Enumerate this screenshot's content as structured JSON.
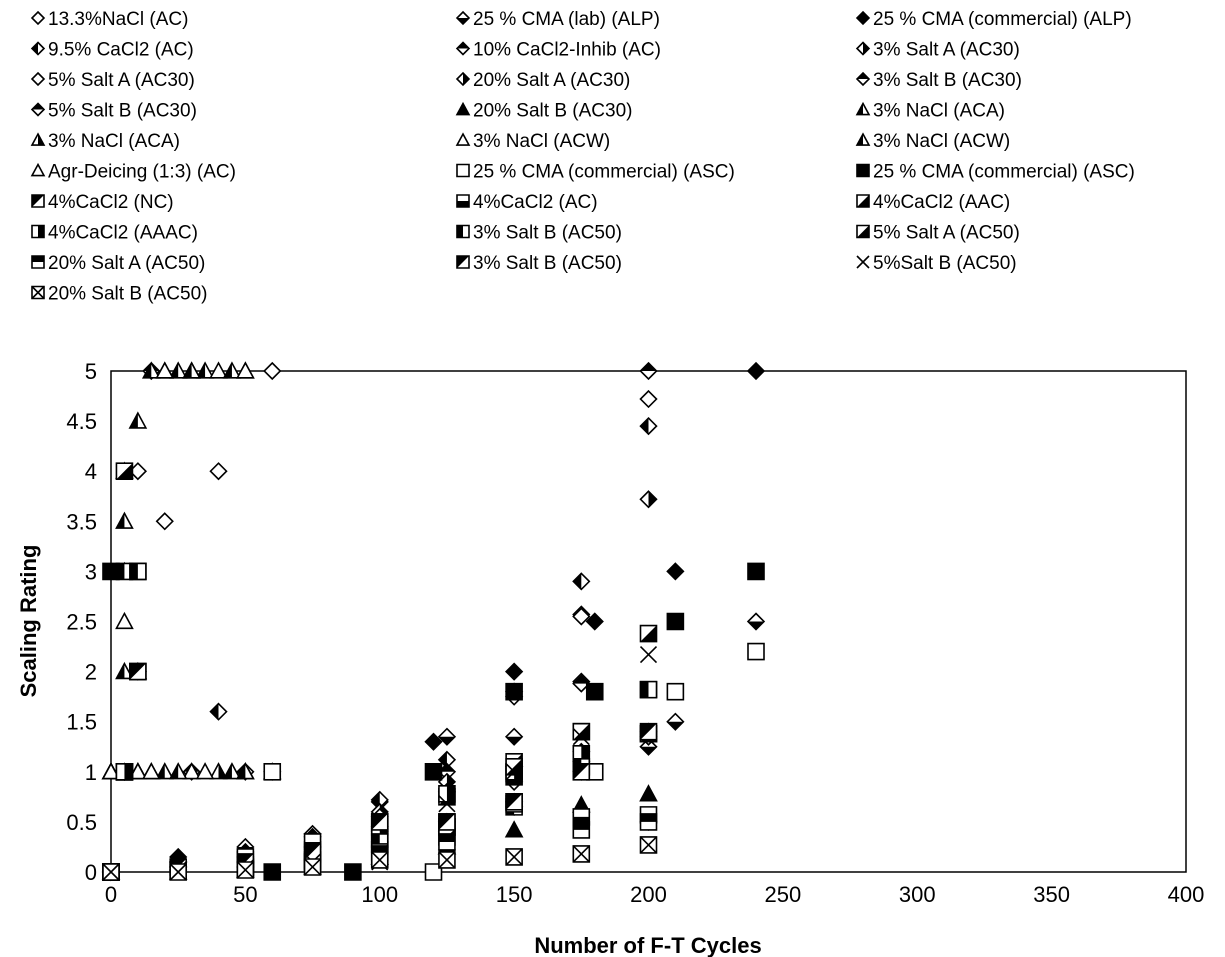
{
  "chart_data": {
    "type": "scatter",
    "xlabel": "Number of F-T Cycles",
    "ylabel": "Scaling Rating",
    "xlim": [
      0,
      400
    ],
    "ylim": [
      0,
      5
    ],
    "x_ticks": [
      "0",
      "50",
      "100",
      "150",
      "200",
      "250",
      "300",
      "350",
      "400"
    ],
    "y_ticks": [
      "0",
      "0.5",
      "1",
      "1.5",
      "2",
      "2.5",
      "3",
      "3.5",
      "4",
      "4.5",
      "5"
    ],
    "grid": false,
    "legend_position": "top",
    "series": [
      {
        "name": "13.3%NaCl (AC)",
        "marker": "diamond-open",
        "points": [
          [
            0,
            0
          ],
          [
            5,
            1
          ],
          [
            10,
            4
          ],
          [
            20,
            3.5
          ],
          [
            40,
            4
          ],
          [
            60,
            5
          ]
        ]
      },
      {
        "name": "25 % CMA (lab) (ALP)",
        "marker": "diamond-half-bottom",
        "points": [
          [
            0,
            0
          ],
          [
            25,
            0.1
          ],
          [
            50,
            0.25
          ],
          [
            75,
            0.38
          ],
          [
            100,
            0.7
          ],
          [
            125,
            1.35
          ],
          [
            150,
            1.35
          ],
          [
            175,
            1.9
          ],
          [
            200,
            1.25
          ],
          [
            210,
            1.5
          ],
          [
            240,
            2.5
          ]
        ]
      },
      {
        "name": "25 % CMA (commercial) (ALP)",
        "marker": "diamond-filled",
        "points": [
          [
            0,
            0
          ],
          [
            25,
            0.15
          ],
          [
            50,
            0.2
          ],
          [
            75,
            0.35
          ],
          [
            100,
            0.4
          ],
          [
            120,
            1.3
          ],
          [
            150,
            2
          ],
          [
            180,
            2.5
          ],
          [
            210,
            3
          ],
          [
            240,
            5
          ]
        ]
      },
      {
        "name": "9.5% CaCl2 (AC)",
        "marker": "diamond-half-left",
        "points": [
          [
            0,
            0
          ],
          [
            5,
            1
          ],
          [
            10,
            2
          ],
          [
            40,
            1.6
          ],
          [
            50,
            1
          ],
          [
            100,
            0.72
          ],
          [
            125,
            1.12
          ],
          [
            150,
            1.05
          ],
          [
            175,
            2.9
          ],
          [
            200,
            4.45
          ]
        ]
      },
      {
        "name": "10% CaCl2-Inhib (AC)",
        "marker": "diamond-half-top",
        "points": [
          [
            0,
            0
          ],
          [
            5,
            1
          ],
          [
            15,
            5
          ],
          [
            30,
            1
          ],
          [
            60,
            1
          ],
          [
            100,
            0.3
          ],
          [
            125,
            1
          ],
          [
            150,
            0.7
          ],
          [
            175,
            1.1
          ],
          [
            200,
            5
          ]
        ]
      },
      {
        "name": "3% Salt A (AC30)",
        "marker": "diamond-half-right",
        "points": [
          [
            0,
            0
          ],
          [
            25,
            0.05
          ],
          [
            50,
            0.1
          ],
          [
            75,
            0.2
          ],
          [
            100,
            0.6
          ],
          [
            125,
            0.9
          ],
          [
            150,
            1.8
          ],
          [
            175,
            2.57
          ],
          [
            200,
            3.72
          ]
        ]
      },
      {
        "name": "5% Salt A (AC30)",
        "marker": "diamond-open",
        "points": [
          [
            0,
            0
          ],
          [
            25,
            0.1
          ],
          [
            50,
            0.15
          ],
          [
            75,
            0.3
          ],
          [
            100,
            0.55
          ],
          [
            125,
            0.8
          ],
          [
            150,
            1.75
          ],
          [
            175,
            2.55
          ],
          [
            200,
            4.72
          ]
        ]
      },
      {
        "name": "20% Salt A (AC30)",
        "marker": "diamond-half-right",
        "points": [
          [
            0,
            0
          ],
          [
            25,
            0.02
          ],
          [
            50,
            0.05
          ],
          [
            75,
            0.1
          ],
          [
            100,
            0.2
          ],
          [
            125,
            0.4
          ],
          [
            150,
            0.65
          ],
          [
            175,
            1.2
          ],
          [
            200,
            1.4
          ]
        ]
      },
      {
        "name": "3% Salt B (AC30)",
        "marker": "diamond-half-top",
        "points": [
          [
            0,
            0
          ],
          [
            25,
            0.05
          ],
          [
            50,
            0.05
          ],
          [
            75,
            0.12
          ],
          [
            100,
            0.25
          ],
          [
            125,
            0.5
          ],
          [
            150,
            0.9
          ],
          [
            175,
            1
          ],
          [
            200,
            0.5
          ]
        ]
      },
      {
        "name": "5% Salt B (AC30)",
        "marker": "diamond-half-top",
        "points": [
          [
            0,
            0
          ],
          [
            25,
            0.1
          ],
          [
            50,
            0.1
          ],
          [
            75,
            0.25
          ],
          [
            100,
            0.45
          ],
          [
            125,
            0.22
          ],
          [
            150,
            1.05
          ],
          [
            175,
            1.88
          ],
          [
            200,
            1.35
          ]
        ]
      },
      {
        "name": "20% Salt B (AC30)",
        "marker": "triangle-filled",
        "points": [
          [
            0,
            0
          ],
          [
            25,
            0
          ],
          [
            50,
            0.02
          ],
          [
            75,
            0.05
          ],
          [
            100,
            0.15
          ],
          [
            125,
            0.25
          ],
          [
            150,
            0.42
          ],
          [
            175,
            0.67
          ],
          [
            200,
            0.78
          ]
        ]
      },
      {
        "name": "3% NaCl (ACA)",
        "marker": "triangle-half-left",
        "points": [
          [
            0,
            1
          ],
          [
            5,
            3.5
          ],
          [
            10,
            4.5
          ],
          [
            15,
            5
          ],
          [
            20,
            1
          ],
          [
            25,
            5
          ],
          [
            35,
            5
          ],
          [
            45,
            1
          ]
        ]
      },
      {
        "name": "3% NaCl (ACA)",
        "marker": "triangle-half-right",
        "points": [
          [
            0,
            1
          ],
          [
            5,
            3
          ],
          [
            10,
            2
          ],
          [
            20,
            5
          ],
          [
            30,
            5
          ],
          [
            40,
            1
          ],
          [
            50,
            5
          ]
        ]
      },
      {
        "name": "3% NaCl (ACW)",
        "marker": "triangle-open",
        "points": [
          [
            0,
            1
          ],
          [
            5,
            2.5
          ],
          [
            10,
            1
          ],
          [
            15,
            1
          ],
          [
            20,
            5
          ],
          [
            30,
            1
          ],
          [
            40,
            5
          ],
          [
            50,
            1
          ]
        ]
      },
      {
        "name": "3% NaCl (ACW)",
        "marker": "triangle-half-left",
        "points": [
          [
            0,
            1
          ],
          [
            5,
            2
          ],
          [
            10,
            1
          ],
          [
            25,
            1
          ],
          [
            30,
            5
          ],
          [
            45,
            5
          ],
          [
            50,
            1
          ]
        ]
      },
      {
        "name": "Agr-Deicing (1:3) (AC)",
        "marker": "triangle-open",
        "points": [
          [
            0,
            1
          ],
          [
            5,
            4
          ],
          [
            10,
            1
          ],
          [
            15,
            1
          ],
          [
            35,
            1
          ],
          [
            50,
            5
          ],
          [
            60,
            1
          ]
        ]
      },
      {
        "name": "25 % CMA (commercial) (ASC)",
        "marker": "square-open",
        "points": [
          [
            0,
            0
          ],
          [
            5,
            1
          ],
          [
            10,
            2
          ],
          [
            60,
            1
          ],
          [
            120,
            0
          ],
          [
            150,
            1
          ],
          [
            180,
            1
          ],
          [
            210,
            1.8
          ],
          [
            240,
            2.2
          ]
        ]
      },
      {
        "name": "25 % CMA (commercial) (ASC)",
        "marker": "square-filled",
        "points": [
          [
            0,
            3
          ],
          [
            60,
            0
          ],
          [
            90,
            0
          ],
          [
            120,
            1
          ],
          [
            150,
            1.8
          ],
          [
            180,
            1.8
          ],
          [
            210,
            2.5
          ],
          [
            240,
            3
          ]
        ]
      },
      {
        "name": "4%CaCl2 (NC)",
        "marker": "square-half-upper-left",
        "points": [
          [
            0,
            0
          ],
          [
            5,
            1
          ],
          [
            10,
            2
          ],
          [
            100,
            0.3
          ],
          [
            125,
            0.45
          ],
          [
            150,
            0.7
          ],
          [
            200,
            1.38
          ]
        ]
      },
      {
        "name": "4%CaCl2 (AC)",
        "marker": "square-half-bottom",
        "points": [
          [
            0,
            0
          ],
          [
            5,
            1
          ],
          [
            50,
            0.15
          ],
          [
            75,
            0.3
          ],
          [
            100,
            0.35
          ],
          [
            125,
            0.45
          ],
          [
            150,
            0.95
          ],
          [
            175,
            0.55
          ],
          [
            200,
            0.57
          ]
        ]
      },
      {
        "name": "4%CaCl2 (AAC)",
        "marker": "square-half-lower-right",
        "points": [
          [
            0,
            0
          ],
          [
            5,
            4
          ],
          [
            100,
            0.5
          ],
          [
            125,
            0.75
          ],
          [
            150,
            1.1
          ],
          [
            175,
            1.4
          ],
          [
            200,
            2.38
          ]
        ]
      },
      {
        "name": "4%CaCl2 (AAAC)",
        "marker": "square-half-right",
        "points": [
          [
            0,
            0
          ],
          [
            5,
            1
          ],
          [
            10,
            3
          ],
          [
            100,
            0.45
          ],
          [
            125,
            0.78
          ],
          [
            150,
            1
          ],
          [
            175,
            1.18
          ],
          [
            200,
            1.82
          ]
        ]
      },
      {
        "name": "3% Salt B (AC50)",
        "marker": "square-half-left",
        "points": [
          [
            0,
            0
          ],
          [
            5,
            3
          ],
          [
            10,
            3
          ],
          [
            50,
            0.05
          ],
          [
            75,
            0.12
          ],
          [
            100,
            0.3
          ],
          [
            125,
            0.5
          ],
          [
            150,
            0.65
          ],
          [
            175,
            1.05
          ],
          [
            200,
            1.82
          ]
        ]
      },
      {
        "name": "5% Salt A (AC50)",
        "marker": "square-half-lower-right",
        "points": [
          [
            0,
            0
          ],
          [
            50,
            0.03
          ],
          [
            75,
            0.1
          ],
          [
            100,
            0.2
          ],
          [
            125,
            0.35
          ],
          [
            150,
            1.05
          ],
          [
            175,
            1.4
          ],
          [
            200,
            1.38
          ]
        ]
      },
      {
        "name": "20% Salt A (AC50)",
        "marker": "square-half-top",
        "points": [
          [
            0,
            0
          ],
          [
            25,
            0.02
          ],
          [
            50,
            0.05
          ],
          [
            75,
            0.1
          ],
          [
            100,
            0.18
          ],
          [
            125,
            0.3
          ],
          [
            150,
            0.68
          ],
          [
            175,
            0.42
          ],
          [
            200,
            0.5
          ]
        ]
      },
      {
        "name": "3% Salt B (AC50)",
        "marker": "square-half-upper-left",
        "points": [
          [
            0,
            0
          ],
          [
            25,
            0.05
          ],
          [
            50,
            0.1
          ],
          [
            75,
            0.2
          ],
          [
            100,
            0.5
          ],
          [
            125,
            0.5
          ],
          [
            150,
            0.7
          ],
          [
            175,
            1
          ],
          [
            200,
            1.4
          ]
        ]
      },
      {
        "name": "5%Salt B (AC50)",
        "marker": "x",
        "points": [
          [
            0,
            0
          ],
          [
            25,
            0.02
          ],
          [
            50,
            0.04
          ],
          [
            75,
            0.1
          ],
          [
            100,
            0.1
          ],
          [
            125,
            0.68
          ],
          [
            150,
            1
          ],
          [
            175,
            1.35
          ],
          [
            200,
            2.17
          ]
        ]
      },
      {
        "name": "20% Salt B (AC50)",
        "marker": "x-square",
        "points": [
          [
            0,
            0
          ],
          [
            25,
            0
          ],
          [
            50,
            0.02
          ],
          [
            75,
            0.05
          ],
          [
            100,
            0.12
          ],
          [
            125,
            0.12
          ],
          [
            150,
            0.15
          ],
          [
            175,
            0.18
          ],
          [
            200,
            0.27
          ]
        ]
      }
    ]
  }
}
